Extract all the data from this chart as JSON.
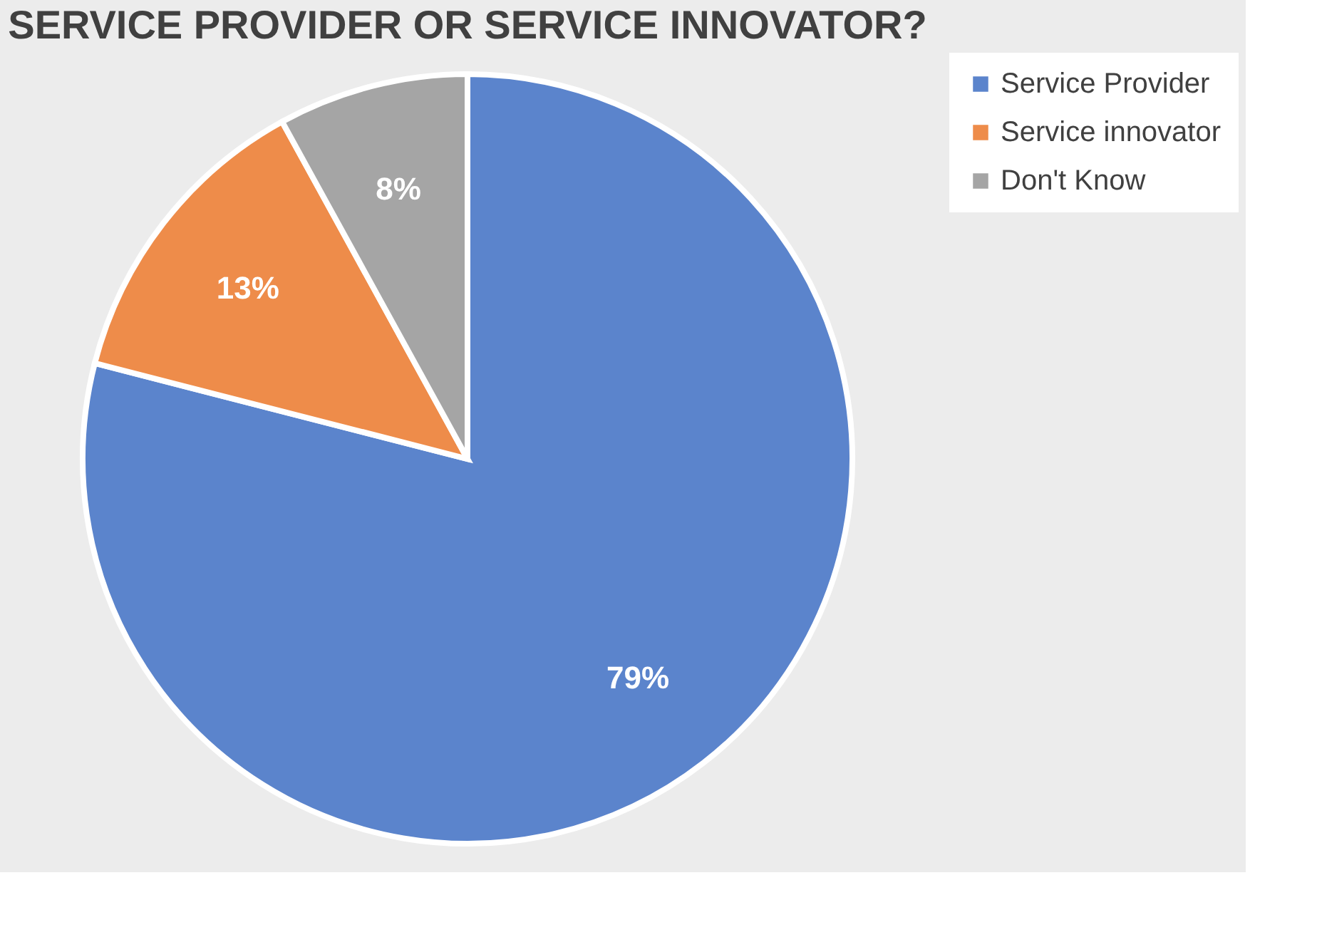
{
  "chart_data": {
    "type": "pie",
    "title": "SERVICE PROVIDER OR SERVICE INNOVATOR?",
    "categories": [
      "Service Provider",
      "Service innovator",
      "Don't Know"
    ],
    "values": [
      79,
      13,
      8
    ],
    "colors": [
      "#5b84cc",
      "#ee8c4a",
      "#a5a5a5"
    ],
    "value_labels": [
      "79%",
      "13%",
      "8%"
    ],
    "legend": "right"
  }
}
